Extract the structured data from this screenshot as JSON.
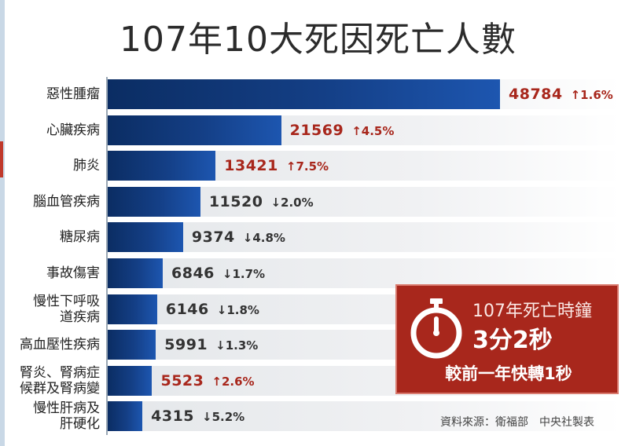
{
  "title": "107年10大死因死亡人數",
  "colors": {
    "bar_dark": "#0b2d63",
    "bar_light": "#1d56b0",
    "increase": "#a8271c",
    "decrease": "#333333",
    "info_box": "#a8271c"
  },
  "chart_data": {
    "type": "bar",
    "orientation": "horizontal",
    "title": "107年10大死因死亡人數",
    "categories": [
      "惡性腫瘤",
      "心臟疾病",
      "肺炎",
      "腦血管疾病",
      "糖尿病",
      "事故傷害",
      "慢性下呼吸道疾病",
      "高血壓性疾病",
      "腎炎、腎病症候群及腎病變",
      "慢性肝病及肝硬化"
    ],
    "category_lines": [
      [
        "惡性腫瘤"
      ],
      [
        "心臟疾病"
      ],
      [
        "肺炎"
      ],
      [
        "腦血管疾病"
      ],
      [
        "糖尿病"
      ],
      [
        "事故傷害"
      ],
      [
        "慢性下呼吸",
        "道疾病"
      ],
      [
        "高血壓性疾病"
      ],
      [
        "腎炎、腎病症",
        "候群及腎病變"
      ],
      [
        "慢性肝病及",
        "肝硬化"
      ]
    ],
    "values": [
      48784,
      21569,
      13421,
      11520,
      9374,
      6846,
      6146,
      5991,
      5523,
      4315
    ],
    "value_labels": [
      "48784",
      "21569",
      "13421",
      "11520",
      "9374",
      "6846",
      "6146",
      "5991",
      "5523",
      "4315"
    ],
    "changes": [
      "↑1.6%",
      "↑4.5%",
      "↑7.5%",
      "↓2.0%",
      "↓4.8%",
      "↓1.7%",
      "↓1.8%",
      "↓1.3%",
      "↑2.6%",
      "↓5.2%"
    ],
    "change_direction": [
      "up",
      "up",
      "up",
      "down",
      "down",
      "down",
      "down",
      "down",
      "up",
      "down"
    ],
    "xlim": [
      0,
      48784
    ],
    "xlabel": "",
    "ylabel": ""
  },
  "info_box": {
    "line1": "107年死亡時鐘",
    "line2": "3分2秒",
    "line3": "較前一年快轉1秒"
  },
  "source": "資料來源：衛福部　中央社製表"
}
